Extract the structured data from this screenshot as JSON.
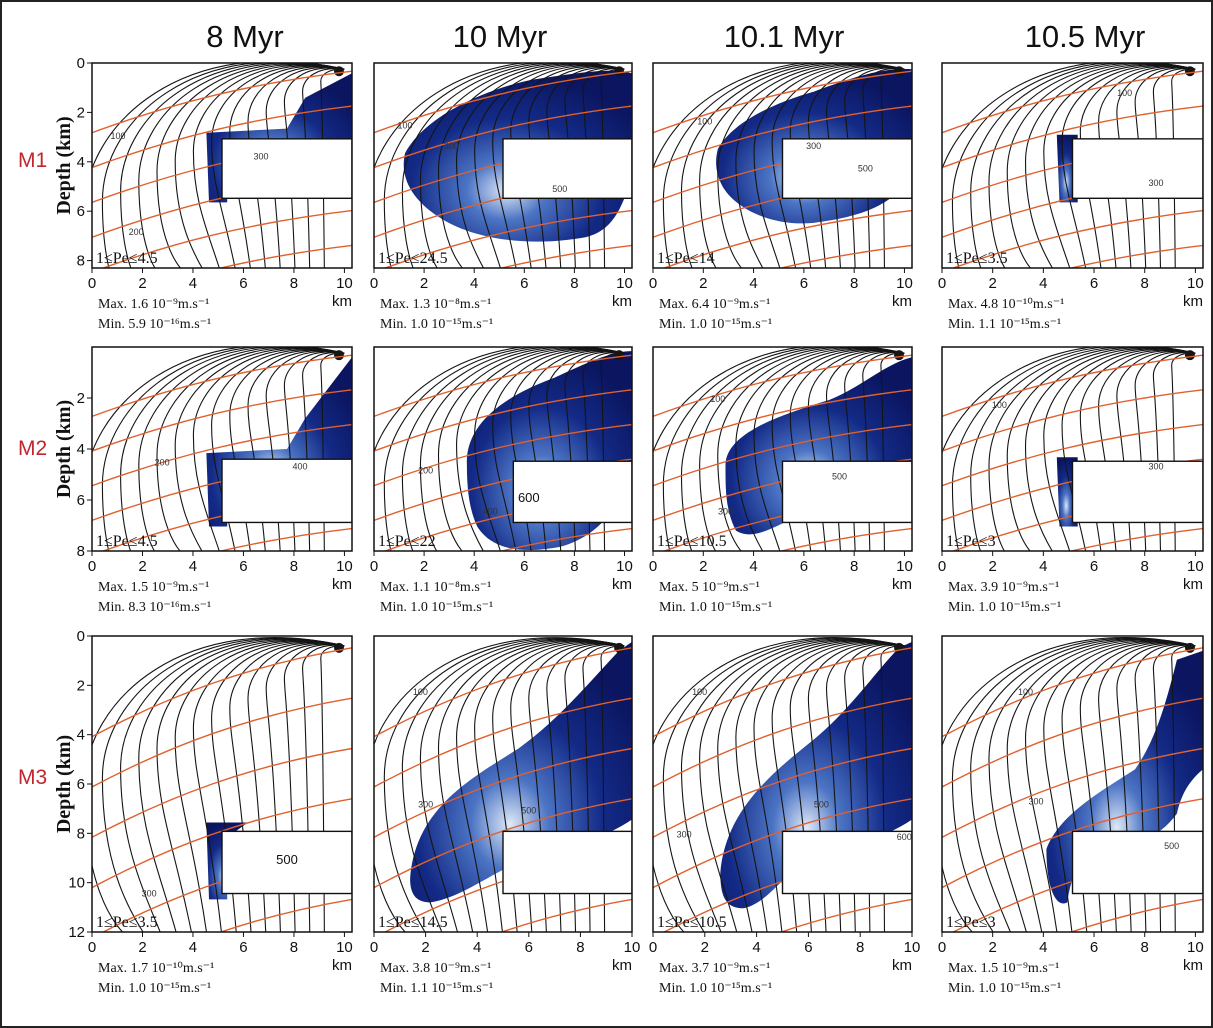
{
  "figure": {
    "columns": [
      "8 Myr",
      "10 Myr",
      "10.1 Myr",
      "10.5 Myr"
    ],
    "rows": [
      "M1",
      "M2",
      "M3"
    ],
    "y_axis_title": "Depth (km)",
    "x_unit": "km"
  },
  "colors": {
    "streamline": "#151515",
    "isotherm": "#e0602e",
    "velocity_low": "#0b1560",
    "velocity_high": "#dfe9f7",
    "row_label": "#c0272d"
  },
  "chart_data": [
    {
      "type": "heatmap",
      "row": "M1",
      "time": "8 Myr",
      "peclet": "1≤Pe≤4.5",
      "max": "Max. 1.6 10⁻⁹m.s⁻¹",
      "min": "Min. 5.9 10⁻¹⁶m.s⁻¹",
      "isotherms": [
        "100",
        "300",
        "200"
      ],
      "xticks": [
        "0",
        "2",
        "4",
        "6",
        "8",
        "10"
      ],
      "yticks": [
        "0",
        "2",
        "4",
        "6",
        "8"
      ],
      "xlim": [
        0,
        10.3
      ],
      "ylim": [
        0,
        8.3
      ]
    },
    {
      "type": "heatmap",
      "row": "M1",
      "time": "10 Myr",
      "peclet": "1≤Pe≤24.5",
      "max": "Max. 1.3 10⁻⁸m.s⁻¹",
      "min": "Min. 1.0 10⁻¹⁵m.s⁻¹",
      "isotherms": [
        "100",
        "300",
        "500"
      ],
      "xticks": [
        "0",
        "2",
        "4",
        "6",
        "8",
        "10"
      ],
      "yticks": [],
      "xlim": [
        0,
        10.3
      ],
      "ylim": [
        0,
        8.3
      ]
    },
    {
      "type": "heatmap",
      "row": "M1",
      "time": "10.1 Myr",
      "peclet": "1≤Pe≤14",
      "max": "Max. 6.4 10⁻⁹m.s⁻¹",
      "min": "Min. 1.0 10⁻¹⁵m.s⁻¹",
      "isotherms": [
        "100",
        "300",
        "500"
      ],
      "xticks": [
        "0",
        "2",
        "4",
        "6",
        "8",
        "10"
      ],
      "yticks": [],
      "xlim": [
        0,
        10.3
      ],
      "ylim": [
        0,
        8.3
      ]
    },
    {
      "type": "heatmap",
      "row": "M1",
      "time": "10.5 Myr",
      "peclet": "1≤Pe≤3.5",
      "max": "Max. 4.8 10⁻¹⁰m.s⁻¹",
      "min": "Min. 1.1 10⁻¹⁵m.s⁻¹",
      "isotherms": [
        "100",
        "300"
      ],
      "xticks": [
        "0",
        "2",
        "4",
        "6",
        "8",
        "10"
      ],
      "yticks": [],
      "xlim": [
        0,
        10.3
      ],
      "ylim": [
        0,
        8.3
      ]
    },
    {
      "type": "heatmap",
      "row": "M2",
      "time": "8 Myr",
      "peclet": "1≤Pe≤4.5",
      "max": "Max. 1.5 10⁻⁹m.s⁻¹",
      "min": "Min. 8.3 10⁻¹⁶m.s⁻¹",
      "isotherms": [
        "200",
        "400"
      ],
      "xticks": [
        "0",
        "2",
        "4",
        "6",
        "8",
        "10"
      ],
      "yticks": [
        "2",
        "4",
        "6",
        "8"
      ],
      "xlim": [
        0,
        10.3
      ],
      "ylim": [
        0,
        8
      ]
    },
    {
      "type": "heatmap",
      "row": "M2",
      "time": "10 Myr",
      "peclet": "1≤Pe≤22",
      "max": "Max. 1.1 10⁻⁸m.s⁻¹",
      "min": "Min. 1.0 10⁻¹⁵m.s⁻¹",
      "isotherms": [
        "200",
        "400",
        "600"
      ],
      "xticks": [
        "0",
        "2",
        "4",
        "6",
        "8",
        "10"
      ],
      "yticks": [],
      "xlim": [
        0,
        10.3
      ],
      "ylim": [
        0,
        8
      ]
    },
    {
      "type": "heatmap",
      "row": "M2",
      "time": "10.1 Myr",
      "peclet": "1≤Pe≤10.5",
      "max": "Max. 5 10⁻⁹m.s⁻¹",
      "min": "Min. 1.0 10⁻¹⁵m.s⁻¹",
      "isotherms": [
        "100",
        "300",
        "500"
      ],
      "xticks": [
        "0",
        "2",
        "4",
        "6",
        "8",
        "10"
      ],
      "yticks": [],
      "xlim": [
        0,
        10.3
      ],
      "ylim": [
        0,
        8
      ]
    },
    {
      "type": "heatmap",
      "row": "M2",
      "time": "10.5 Myr",
      "peclet": "1≤Pe≤3",
      "max": "Max. 3.9 10⁻⁹m.s⁻¹",
      "min": "Min. 1.0 10⁻¹⁵m.s⁻¹",
      "isotherms": [
        "100",
        "300"
      ],
      "xticks": [
        "0",
        "2",
        "4",
        "6",
        "8",
        "10"
      ],
      "yticks": [],
      "xlim": [
        0,
        10.3
      ],
      "ylim": [
        0,
        8
      ]
    },
    {
      "type": "heatmap",
      "row": "M3",
      "time": "8 Myr",
      "peclet": "1≤Pe≤3.5",
      "max": "Max. 1.7 10⁻¹⁰m.s⁻¹",
      "min": "Min. 1.0 10⁻¹⁵m.s⁻¹",
      "isotherms": [
        "300",
        "500"
      ],
      "xticks": [
        "0",
        "2",
        "4",
        "6",
        "8",
        "10"
      ],
      "yticks": [
        "0",
        "2",
        "4",
        "6",
        "8",
        "10",
        "12"
      ],
      "xlim": [
        0,
        10.3
      ],
      "ylim": [
        0,
        12
      ]
    },
    {
      "type": "heatmap",
      "row": "M3",
      "time": "10 Myr",
      "peclet": "1≤Pe≤14.5",
      "max": "Max. 3.8 10⁻⁹m.s⁻¹",
      "min": "Min. 1.1 10⁻¹⁵m.s⁻¹",
      "isotherms": [
        "100",
        "300",
        "500"
      ],
      "xticks": [
        "0",
        "2",
        "4",
        "6",
        "8",
        "10"
      ],
      "yticks": [],
      "xlim": [
        0,
        10
      ],
      "ylim": [
        0,
        12
      ]
    },
    {
      "type": "heatmap",
      "row": "M3",
      "time": "10.1 Myr",
      "peclet": "1≤Pe≤10.5",
      "max": "Max. 3.7 10⁻⁹m.s⁻¹",
      "min": "Min. 1.0 10⁻¹⁵m.s⁻¹",
      "isotherms": [
        "100",
        "300",
        "500",
        "600"
      ],
      "xticks": [
        "0",
        "2",
        "4",
        "6",
        "8",
        "10"
      ],
      "yticks": [],
      "xlim": [
        0,
        10
      ],
      "ylim": [
        0,
        12
      ]
    },
    {
      "type": "heatmap",
      "row": "M3",
      "time": "10.5 Myr",
      "peclet": "1≤Pe≤3",
      "max": "Max. 1.5 10⁻⁹m.s⁻¹",
      "min": "Min. 1.0 10⁻¹⁵m.s⁻¹",
      "isotherms": [
        "100",
        "300",
        "500"
      ],
      "xticks": [
        "0",
        "2",
        "4",
        "6",
        "8",
        "10"
      ],
      "yticks": [],
      "xlim": [
        0,
        10.3
      ],
      "ylim": [
        0,
        12
      ]
    }
  ]
}
